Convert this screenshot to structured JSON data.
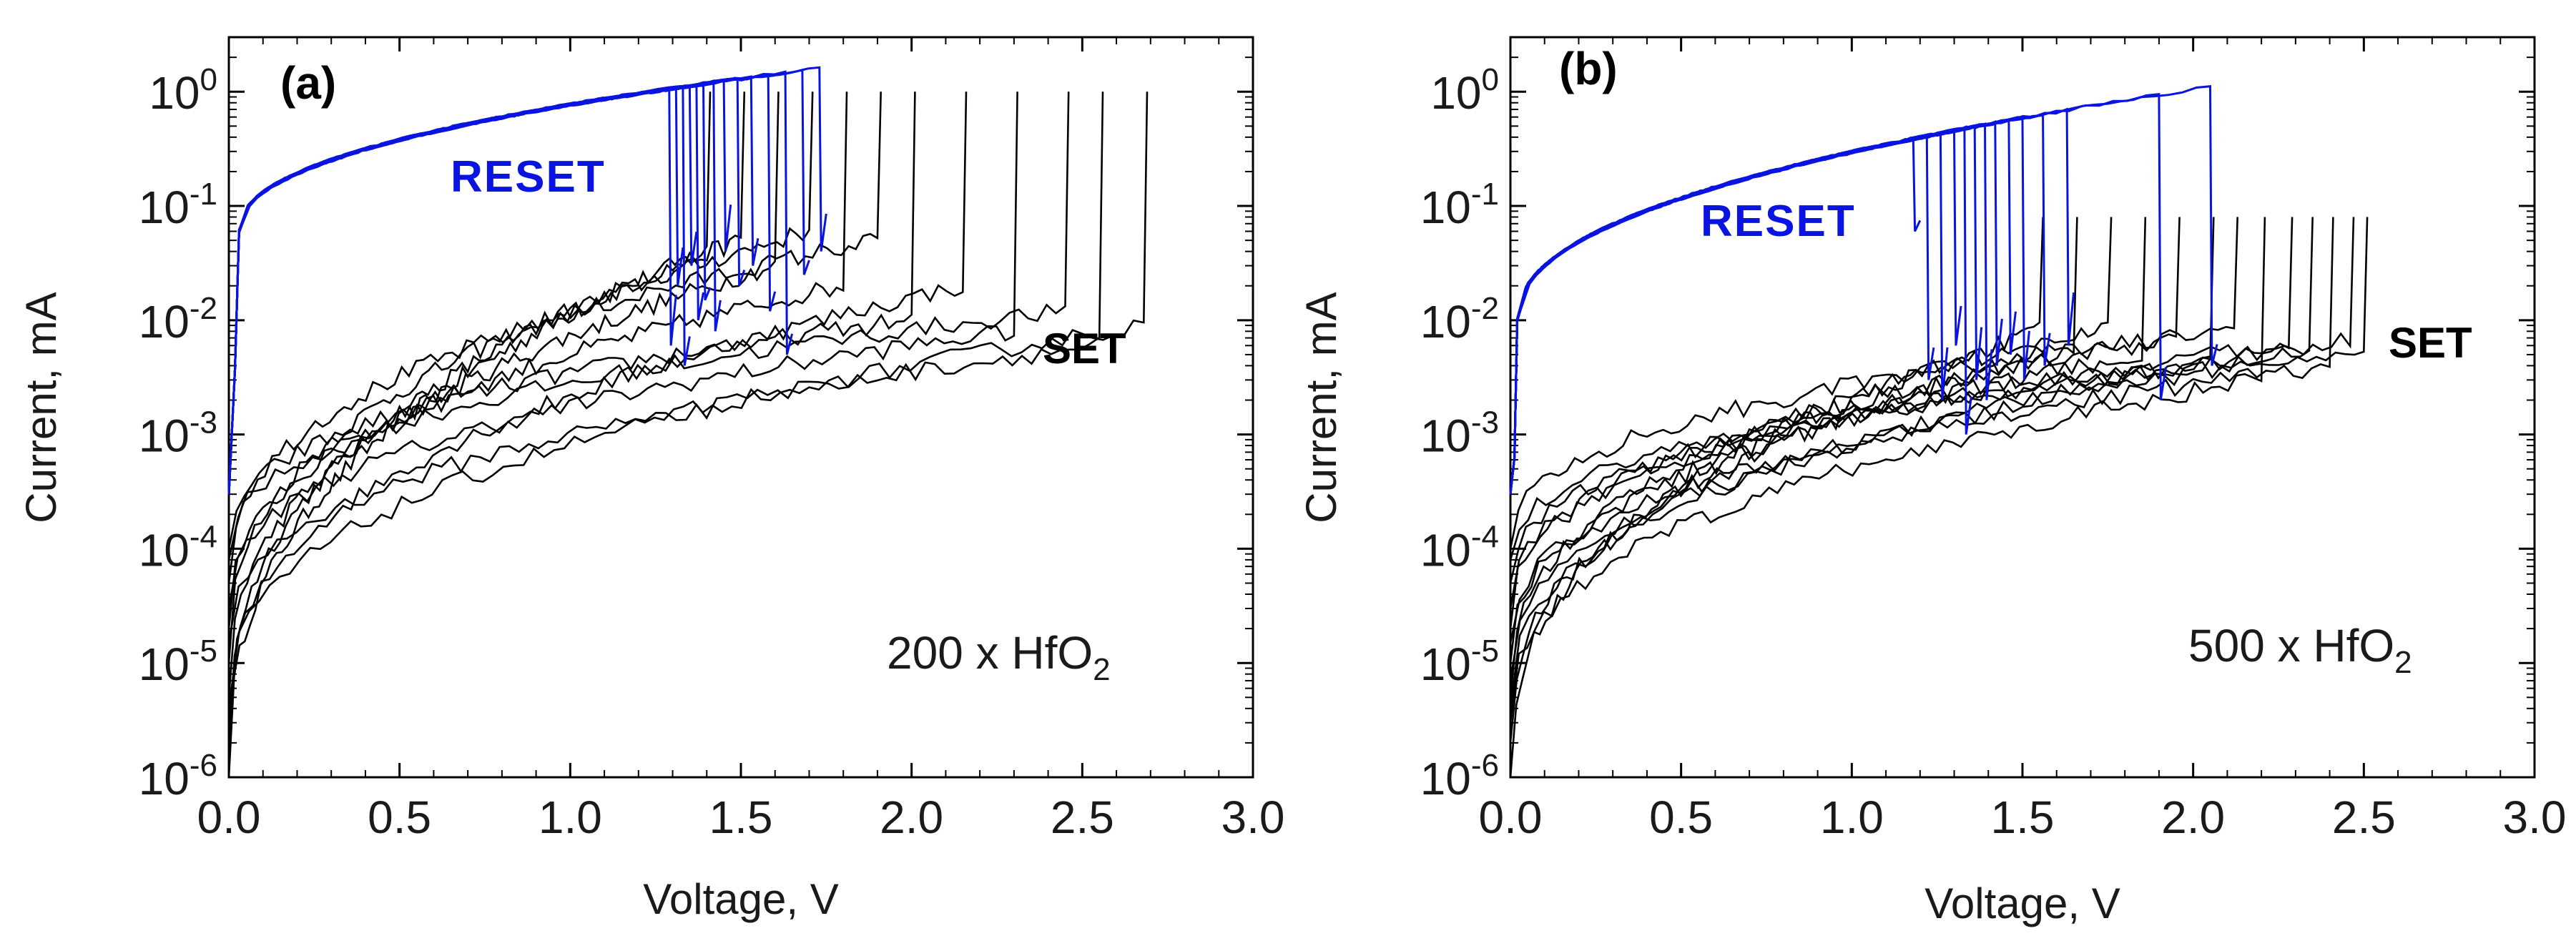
{
  "chart_data": [
    {
      "type": "line",
      "panel_label": "(a)",
      "xlabel": "Voltage, V",
      "ylabel": "Current, mA",
      "x_scale": "linear",
      "y_scale": "log",
      "xlim": [
        0.0,
        3.0
      ],
      "ylim": [
        1e-06,
        3
      ],
      "x_ticks": [
        "0.0",
        "0.5",
        "1.0",
        "1.5",
        "2.0",
        "2.5",
        "3.0"
      ],
      "y_ticks": [
        {
          "base": "10",
          "exp": "0",
          "value": 1
        },
        {
          "base": "10",
          "exp": "-1",
          "value": 0.1
        },
        {
          "base": "10",
          "exp": "-2",
          "value": 0.01
        },
        {
          "base": "10",
          "exp": "-3",
          "value": 0.001
        },
        {
          "base": "10",
          "exp": "-4",
          "value": 0.0001
        },
        {
          "base": "10",
          "exp": "-5",
          "value": 1e-05
        },
        {
          "base": "10",
          "exp": "-6",
          "value": 1e-06
        }
      ],
      "annotations": {
        "reset": "RESET",
        "set": "SET",
        "sample_main": "200 x HfO",
        "sample_sub": "2"
      },
      "colors": {
        "reset": "#0a14e0",
        "set": "#000000"
      },
      "reset": {
        "onset_V": 0.03,
        "plateau_mA": [
          0.06,
          1.6
        ],
        "drop_voltages": [
          1.29,
          1.31,
          1.33,
          1.35,
          1.37,
          1.39,
          1.42,
          1.45,
          1.49,
          1.53,
          1.58,
          1.63,
          1.68,
          1.73
        ],
        "drop_floor_mA": [
          0.006,
          0.02,
          0.004,
          0.03,
          0.01,
          0.015,
          0.008,
          0.04,
          0.02,
          0.03,
          0.012,
          0.005,
          0.025,
          0.04
        ]
      },
      "set": {
        "start_mA": [
          1e-06,
          2e-06,
          5e-06,
          1e-05,
          2e-05,
          5e-05,
          0.0001,
          3e-06,
          3e-05,
          8e-05,
          1.5e-05,
          4e-06
        ],
        "knee_V": [
          1.4,
          1.5,
          1.6,
          1.7,
          1.8,
          1.9,
          2.0,
          2.15,
          2.3,
          2.45,
          2.55,
          2.68
        ],
        "knee_mA": [
          0.04,
          0.05,
          0.03,
          0.06,
          0.02,
          0.05,
          0.01,
          0.02,
          0.008,
          0.012,
          0.006,
          0.009
        ],
        "compliance_mA": 1.0
      }
    },
    {
      "type": "line",
      "panel_label": "(b)",
      "xlabel": "Voltage, V",
      "ylabel": "Current, mA",
      "x_scale": "linear",
      "y_scale": "log",
      "xlim": [
        0.0,
        3.0
      ],
      "ylim": [
        1e-06,
        3
      ],
      "x_ticks": [
        "0.0",
        "0.5",
        "1.0",
        "1.5",
        "2.0",
        "2.5",
        "3.0"
      ],
      "y_ticks": [
        {
          "base": "10",
          "exp": "0",
          "value": 1
        },
        {
          "base": "10",
          "exp": "-1",
          "value": 0.1
        },
        {
          "base": "10",
          "exp": "-2",
          "value": 0.01
        },
        {
          "base": "10",
          "exp": "-3",
          "value": 0.001
        },
        {
          "base": "10",
          "exp": "-4",
          "value": 0.0001
        },
        {
          "base": "10",
          "exp": "-5",
          "value": 1e-05
        },
        {
          "base": "10",
          "exp": "-6",
          "value": 1e-06
        }
      ],
      "annotations": {
        "reset": "RESET",
        "set": "SET",
        "sample_main": "500 x HfO",
        "sample_sub": "2"
      },
      "colors": {
        "reset": "#0a14e0",
        "set": "#000000"
      },
      "reset": {
        "onset_V": 0.02,
        "plateau_mA": [
          0.01,
          1.1
        ],
        "drop_voltages": [
          1.18,
          1.22,
          1.26,
          1.3,
          1.33,
          1.36,
          1.39,
          1.42,
          1.46,
          1.5,
          1.56,
          1.63,
          1.9,
          2.05
        ],
        "drop_floor_mA": [
          0.06,
          0.003,
          0.002,
          0.006,
          0.001,
          0.003,
          0.002,
          0.004,
          0.005,
          0.003,
          0.004,
          0.006,
          0.002,
          0.004
        ],
        "end_mA": 1.1
      },
      "set": {
        "start_mA": [
          1e-06,
          2e-06,
          5e-06,
          1e-05,
          2e-05,
          5e-05,
          0.0001,
          3e-06,
          3e-05,
          8e-05,
          1.5e-05,
          4e-06,
          7e-06
        ],
        "knee_V": [
          1.55,
          1.65,
          1.75,
          1.85,
          1.95,
          2.05,
          2.12,
          2.2,
          2.28,
          2.34,
          2.4,
          2.46,
          2.5
        ],
        "knee_mA": [
          0.008,
          0.006,
          0.009,
          0.005,
          0.007,
          0.004,
          0.008,
          0.003,
          0.006,
          0.005,
          0.004,
          0.007,
          0.006
        ],
        "compliance_mA": 0.08
      }
    }
  ]
}
